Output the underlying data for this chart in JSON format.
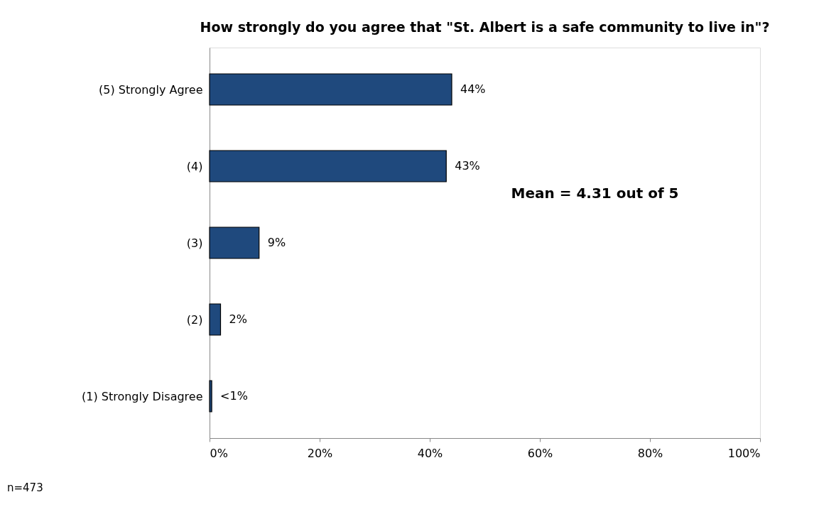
{
  "chart_data": {
    "type": "bar",
    "orientation": "horizontal",
    "title": "How strongly do you agree that \"St. Albert is a safe community to live in\"?",
    "categories": [
      "(5) Strongly Agree",
      "(4)",
      "(3)",
      "(2)",
      "(1) Strongly Disagree"
    ],
    "values": [
      44,
      43,
      9,
      2,
      0.4
    ],
    "value_labels": [
      "44%",
      "43%",
      "9%",
      "2%",
      "<1%"
    ],
    "color": "#1f497d",
    "xlim": [
      0,
      100
    ],
    "xticks": [
      {
        "value": 0,
        "label": "0%"
      },
      {
        "value": 20,
        "label": "20%"
      },
      {
        "value": 40,
        "label": "40%"
      },
      {
        "value": 60,
        "label": "60%"
      },
      {
        "value": 80,
        "label": "80%"
      },
      {
        "value": 100,
        "label": "100%"
      }
    ],
    "grid": false,
    "annotations": [
      "Mean = 4.31 out of 5",
      "n=473"
    ]
  }
}
